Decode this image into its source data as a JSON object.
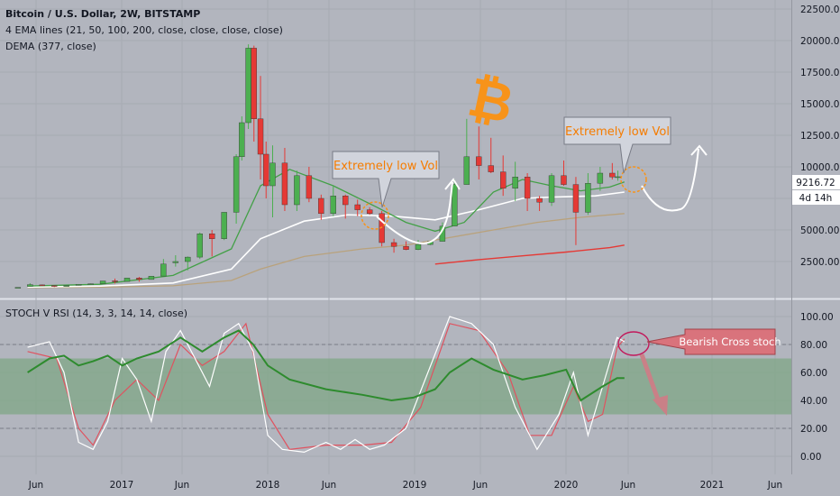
{
  "header": {
    "title": "Bitcoin / U.S. Dollar, 2W, BITSTAMP",
    "ema_line": "4 EMA lines (21, 50, 100, 200, close, close, close, close)",
    "dema_line": "DEMA (377, close)"
  },
  "price_axis": {
    "ticks": [
      22500,
      20000,
      17500,
      15000,
      12500,
      10000,
      7500,
      5000,
      2500
    ],
    "tick_labels": [
      "22500.00",
      "20000.00",
      "17500.00",
      "15000.00",
      "12500.00",
      "10000.00",
      "7500.00",
      "5000.00",
      "2500.00"
    ],
    "last_price": "9216.72",
    "countdown": "4d 14h"
  },
  "stoch_axis": {
    "ticks": [
      100,
      80,
      60,
      40,
      20,
      0
    ],
    "tick_labels": [
      "100.00",
      "80.00",
      "60.00",
      "40.00",
      "20.00",
      "0.00"
    ]
  },
  "time_axis": {
    "labels": [
      "Jun",
      "2017",
      "Jun",
      "2018",
      "Jun",
      "2019",
      "Jun",
      "2020",
      "Jun",
      "2021",
      "Jun"
    ]
  },
  "annotations": {
    "callout_1": "Extremely low Vol",
    "callout_2": "Extremely low Vol",
    "callout_3": "Bearish Cross stoch",
    "logo_symbol": "₿"
  },
  "colors": {
    "background": "#b2b5be",
    "up_candle": "#4caf50",
    "down_candle": "#e53935",
    "ema_green": "#43a047",
    "ema_white": "#ffffff",
    "ema_tan": "#b9a27c",
    "dema_red": "#e53935",
    "callout_fill": "#d1d4dc",
    "callout_text": "#f57c00",
    "bearish_fill": "#d9737c",
    "stoch_band": "#7fa785",
    "bitcoin_orange": "#f7931a"
  },
  "stoch_indicator": {
    "label": "STOCH V RSI (14, 3, 3, 14, 14, close)",
    "upper_band": 70,
    "lower_band": 30,
    "levels": [
      80,
      20
    ]
  },
  "chart_data": {
    "type": "candlestick",
    "timeframe": "2W",
    "x_range": [
      "2016-05",
      "2021-06"
    ],
    "ylim": [
      0,
      23500
    ],
    "candles": [
      {
        "d": "2016-05-01",
        "o": 450,
        "h": 460,
        "l": 440,
        "c": 455
      },
      {
        "d": "2016-06-01",
        "o": 530,
        "h": 780,
        "l": 520,
        "c": 670
      },
      {
        "d": "2016-07-01",
        "o": 650,
        "h": 680,
        "l": 600,
        "c": 620
      },
      {
        "d": "2016-08-01",
        "o": 600,
        "h": 610,
        "l": 480,
        "c": 575
      },
      {
        "d": "2016-09-01",
        "o": 575,
        "h": 610,
        "l": 570,
        "c": 600
      },
      {
        "d": "2016-10-01",
        "o": 610,
        "h": 700,
        "l": 600,
        "c": 690
      },
      {
        "d": "2016-11-01",
        "o": 700,
        "h": 760,
        "l": 690,
        "c": 740
      },
      {
        "d": "2016-12-01",
        "o": 750,
        "h": 960,
        "l": 740,
        "c": 960
      },
      {
        "d": "2017-01-01",
        "o": 970,
        "h": 1150,
        "l": 760,
        "c": 920
      },
      {
        "d": "2017-02-01",
        "o": 920,
        "h": 1200,
        "l": 910,
        "c": 1190
      },
      {
        "d": "2017-03-01",
        "o": 1190,
        "h": 1280,
        "l": 900,
        "c": 1080
      },
      {
        "d": "2017-04-01",
        "o": 1080,
        "h": 1350,
        "l": 1070,
        "c": 1340
      },
      {
        "d": "2017-05-01",
        "o": 1350,
        "h": 2700,
        "l": 1340,
        "c": 2300
      },
      {
        "d": "2017-06-01",
        "o": 2400,
        "h": 3000,
        "l": 2100,
        "c": 2500
      },
      {
        "d": "2017-07-01",
        "o": 2500,
        "h": 2900,
        "l": 1800,
        "c": 2850
      },
      {
        "d": "2017-08-01",
        "o": 2850,
        "h": 4800,
        "l": 2700,
        "c": 4700
      },
      {
        "d": "2017-09-01",
        "o": 4700,
        "h": 5000,
        "l": 2900,
        "c": 4300
      },
      {
        "d": "2017-10-01",
        "o": 4300,
        "h": 6400,
        "l": 4200,
        "c": 6400
      },
      {
        "d": "2017-11-01",
        "o": 6400,
        "h": 11000,
        "l": 5500,
        "c": 10800
      },
      {
        "d": "2017-11-15",
        "o": 10800,
        "h": 14000,
        "l": 10500,
        "c": 13500
      },
      {
        "d": "2017-12-01",
        "o": 13500,
        "h": 19700,
        "l": 13000,
        "c": 19400
      },
      {
        "d": "2017-12-15",
        "o": 19400,
        "h": 19600,
        "l": 12000,
        "c": 13800
      },
      {
        "d": "2018-01-01",
        "o": 13800,
        "h": 17200,
        "l": 9000,
        "c": 11000
      },
      {
        "d": "2018-01-15",
        "o": 11000,
        "h": 12000,
        "l": 7500,
        "c": 8500
      },
      {
        "d": "2018-02-01",
        "o": 8500,
        "h": 11700,
        "l": 6000,
        "c": 10300
      },
      {
        "d": "2018-03-01",
        "o": 10300,
        "h": 11500,
        "l": 6500,
        "c": 7000
      },
      {
        "d": "2018-04-01",
        "o": 7000,
        "h": 9700,
        "l": 6500,
        "c": 9300
      },
      {
        "d": "2018-05-01",
        "o": 9300,
        "h": 10000,
        "l": 7200,
        "c": 7500
      },
      {
        "d": "2018-06-01",
        "o": 7500,
        "h": 7800,
        "l": 5800,
        "c": 6300
      },
      {
        "d": "2018-07-01",
        "o": 6300,
        "h": 8500,
        "l": 6100,
        "c": 7700
      },
      {
        "d": "2018-08-01",
        "o": 7700,
        "h": 7800,
        "l": 5900,
        "c": 7000
      },
      {
        "d": "2018-09-01",
        "o": 7000,
        "h": 7400,
        "l": 6100,
        "c": 6600
      },
      {
        "d": "2018-10-01",
        "o": 6600,
        "h": 6800,
        "l": 6200,
        "c": 6300
      },
      {
        "d": "2018-11-01",
        "o": 6300,
        "h": 6500,
        "l": 3700,
        "c": 4000
      },
      {
        "d": "2018-12-01",
        "o": 4000,
        "h": 4300,
        "l": 3200,
        "c": 3700
      },
      {
        "d": "2019-01-01",
        "o": 3700,
        "h": 4100,
        "l": 3400,
        "c": 3450
      },
      {
        "d": "2019-02-01",
        "o": 3450,
        "h": 4200,
        "l": 3400,
        "c": 3850
      },
      {
        "d": "2019-03-01",
        "o": 3850,
        "h": 4100,
        "l": 3800,
        "c": 4100
      },
      {
        "d": "2019-04-01",
        "o": 4100,
        "h": 5600,
        "l": 4100,
        "c": 5300
      },
      {
        "d": "2019-05-01",
        "o": 5300,
        "h": 9000,
        "l": 5300,
        "c": 8600
      },
      {
        "d": "2019-06-01",
        "o": 8600,
        "h": 13800,
        "l": 8600,
        "c": 10800
      },
      {
        "d": "2019-07-01",
        "o": 10800,
        "h": 13200,
        "l": 9000,
        "c": 10100
      },
      {
        "d": "2019-08-01",
        "o": 10100,
        "h": 12300,
        "l": 9500,
        "c": 9600
      },
      {
        "d": "2019-09-01",
        "o": 9600,
        "h": 10900,
        "l": 7700,
        "c": 8300
      },
      {
        "d": "2019-10-01",
        "o": 8300,
        "h": 10400,
        "l": 7300,
        "c": 9200
      },
      {
        "d": "2019-11-01",
        "o": 9200,
        "h": 9500,
        "l": 6500,
        "c": 7500
      },
      {
        "d": "2019-12-01",
        "o": 7500,
        "h": 7700,
        "l": 6500,
        "c": 7200
      },
      {
        "d": "2020-01-01",
        "o": 7200,
        "h": 9500,
        "l": 6900,
        "c": 9300
      },
      {
        "d": "2020-02-01",
        "o": 9300,
        "h": 10500,
        "l": 8500,
        "c": 8600
      },
      {
        "d": "2020-03-01",
        "o": 8600,
        "h": 9200,
        "l": 3800,
        "c": 6400
      },
      {
        "d": "2020-04-01",
        "o": 6400,
        "h": 9500,
        "l": 6200,
        "c": 8700
      },
      {
        "d": "2020-05-01",
        "o": 8700,
        "h": 10000,
        "l": 8100,
        "c": 9500
      },
      {
        "d": "2020-06-01",
        "o": 9500,
        "h": 10300,
        "l": 9000,
        "c": 9200
      },
      {
        "d": "2020-06-15",
        "o": 9200,
        "h": 9700,
        "l": 8900,
        "c": 9216.72
      }
    ],
    "ema_21": [
      [
        2016.4,
        560
      ],
      [
        2016.9,
        700
      ],
      [
        2017.4,
        1400
      ],
      [
        2017.8,
        3500
      ],
      [
        2018.0,
        8500
      ],
      [
        2018.2,
        9800
      ],
      [
        2018.5,
        8500
      ],
      [
        2018.8,
        6800
      ],
      [
        2019.0,
        5600
      ],
      [
        2019.2,
        4900
      ],
      [
        2019.4,
        5600
      ],
      [
        2019.6,
        8000
      ],
      [
        2019.8,
        9000
      ],
      [
        2020.0,
        8500
      ],
      [
        2020.2,
        8100
      ],
      [
        2020.4,
        8400
      ],
      [
        2020.5,
        8800
      ]
    ],
    "ema_50": [
      [
        2016.4,
        480
      ],
      [
        2016.9,
        560
      ],
      [
        2017.4,
        800
      ],
      [
        2017.8,
        1900
      ],
      [
        2018.0,
        4300
      ],
      [
        2018.3,
        5700
      ],
      [
        2018.6,
        6200
      ],
      [
        2018.9,
        6100
      ],
      [
        2019.2,
        5800
      ],
      [
        2019.5,
        6600
      ],
      [
        2019.8,
        7500
      ],
      [
        2020.0,
        7600
      ],
      [
        2020.3,
        7700
      ],
      [
        2020.5,
        8000
      ]
    ],
    "ema_100": [
      [
        2016.4,
        430
      ],
      [
        2016.9,
        470
      ],
      [
        2017.4,
        580
      ],
      [
        2017.8,
        1000
      ],
      [
        2018.0,
        1900
      ],
      [
        2018.3,
        2900
      ],
      [
        2018.7,
        3500
      ],
      [
        2019.0,
        3800
      ],
      [
        2019.3,
        4400
      ],
      [
        2019.6,
        5000
      ],
      [
        2019.9,
        5600
      ],
      [
        2020.2,
        6000
      ],
      [
        2020.5,
        6300
      ]
    ],
    "dema_377": [
      [
        2019.2,
        2300
      ],
      [
        2019.5,
        2650
      ],
      [
        2019.8,
        2950
      ],
      [
        2020.1,
        3250
      ],
      [
        2020.4,
        3600
      ],
      [
        2020.5,
        3800
      ]
    ],
    "stoch_k": [
      [
        2016.4,
        78
      ],
      [
        2016.55,
        82
      ],
      [
        2016.65,
        60
      ],
      [
        2016.75,
        10
      ],
      [
        2016.85,
        5
      ],
      [
        2016.95,
        25
      ],
      [
        2017.05,
        70
      ],
      [
        2017.15,
        55
      ],
      [
        2017.25,
        25
      ],
      [
        2017.35,
        75
      ],
      [
        2017.45,
        90
      ],
      [
        2017.55,
        70
      ],
      [
        2017.65,
        50
      ],
      [
        2017.75,
        88
      ],
      [
        2017.85,
        95
      ],
      [
        2017.95,
        75
      ],
      [
        2018.05,
        15
      ],
      [
        2018.15,
        5
      ],
      [
        2018.3,
        3
      ],
      [
        2018.45,
        10
      ],
      [
        2018.55,
        5
      ],
      [
        2018.65,
        12
      ],
      [
        2018.75,
        5
      ],
      [
        2018.85,
        8
      ],
      [
        2019.0,
        20
      ],
      [
        2019.15,
        60
      ],
      [
        2019.3,
        100
      ],
      [
        2019.45,
        95
      ],
      [
        2019.6,
        80
      ],
      [
        2019.75,
        35
      ],
      [
        2019.9,
        5
      ],
      [
        2020.05,
        30
      ],
      [
        2020.15,
        60
      ],
      [
        2020.25,
        15
      ],
      [
        2020.35,
        50
      ],
      [
        2020.45,
        85
      ],
      [
        2020.5,
        82
      ]
    ],
    "stoch_d": [
      [
        2016.4,
        75
      ],
      [
        2016.6,
        70
      ],
      [
        2016.75,
        20
      ],
      [
        2016.85,
        8
      ],
      [
        2017.0,
        40
      ],
      [
        2017.15,
        55
      ],
      [
        2017.3,
        40
      ],
      [
        2017.45,
        80
      ],
      [
        2017.6,
        65
      ],
      [
        2017.75,
        75
      ],
      [
        2017.9,
        95
      ],
      [
        2018.05,
        30
      ],
      [
        2018.2,
        5
      ],
      [
        2018.45,
        8
      ],
      [
        2018.7,
        8
      ],
      [
        2018.9,
        10
      ],
      [
        2019.1,
        35
      ],
      [
        2019.3,
        95
      ],
      [
        2019.5,
        90
      ],
      [
        2019.7,
        60
      ],
      [
        2019.85,
        15
      ],
      [
        2020.0,
        15
      ],
      [
        2020.15,
        50
      ],
      [
        2020.25,
        25
      ],
      [
        2020.35,
        30
      ],
      [
        2020.45,
        78
      ],
      [
        2020.5,
        84
      ]
    ],
    "stoch_rsi_green": [
      [
        2016.4,
        60
      ],
      [
        2016.55,
        70
      ],
      [
        2016.65,
        72
      ],
      [
        2016.75,
        65
      ],
      [
        2016.85,
        68
      ],
      [
        2016.95,
        72
      ],
      [
        2017.05,
        65
      ],
      [
        2017.15,
        70
      ],
      [
        2017.3,
        75
      ],
      [
        2017.45,
        85
      ],
      [
        2017.6,
        75
      ],
      [
        2017.75,
        85
      ],
      [
        2017.85,
        90
      ],
      [
        2017.95,
        80
      ],
      [
        2018.05,
        65
      ],
      [
        2018.2,
        55
      ],
      [
        2018.45,
        48
      ],
      [
        2018.7,
        44
      ],
      [
        2018.9,
        40
      ],
      [
        2019.05,
        42
      ],
      [
        2019.2,
        48
      ],
      [
        2019.3,
        60
      ],
      [
        2019.45,
        70
      ],
      [
        2019.6,
        62
      ],
      [
        2019.8,
        55
      ],
      [
        2019.95,
        58
      ],
      [
        2020.1,
        62
      ],
      [
        2020.2,
        40
      ],
      [
        2020.35,
        50
      ],
      [
        2020.45,
        56
      ],
      [
        2020.5,
        56
      ]
    ]
  }
}
